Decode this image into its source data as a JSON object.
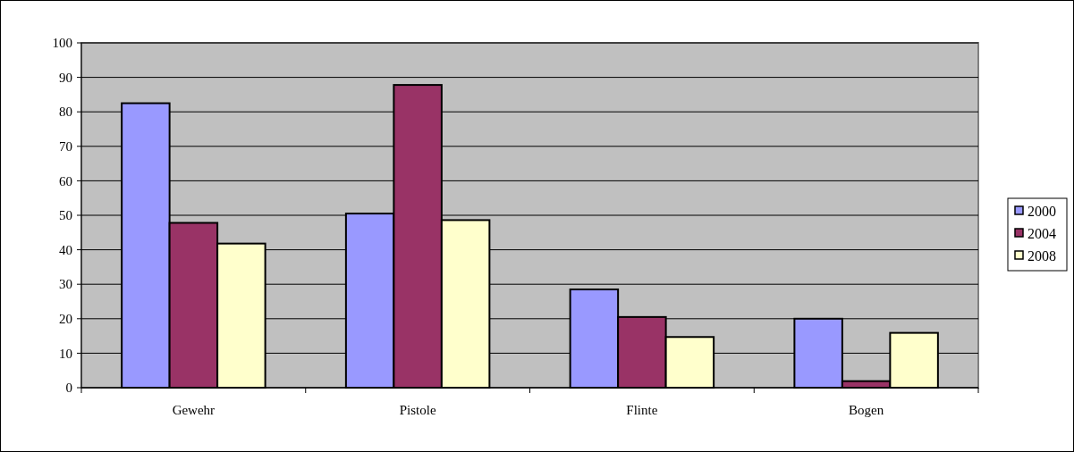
{
  "chart_data": {
    "type": "bar",
    "categories": [
      "Gewehr",
      "Pistole",
      "Flinte",
      "Bogen"
    ],
    "series": [
      {
        "name": "2000",
        "color": "#9999ff",
        "values": [
          82.5,
          50.5,
          28.5,
          20
        ]
      },
      {
        "name": "2004",
        "color": "#993366",
        "values": [
          47.8,
          87.8,
          20.5,
          1.9
        ]
      },
      {
        "name": "2008",
        "color": "#ffffcc",
        "values": [
          41.8,
          48.6,
          14.7,
          15.9
        ]
      }
    ],
    "ylim": [
      0,
      100
    ],
    "yticks": [
      0,
      10,
      20,
      30,
      40,
      50,
      60,
      70,
      80,
      90,
      100
    ],
    "grid": "y",
    "legend": "right"
  }
}
